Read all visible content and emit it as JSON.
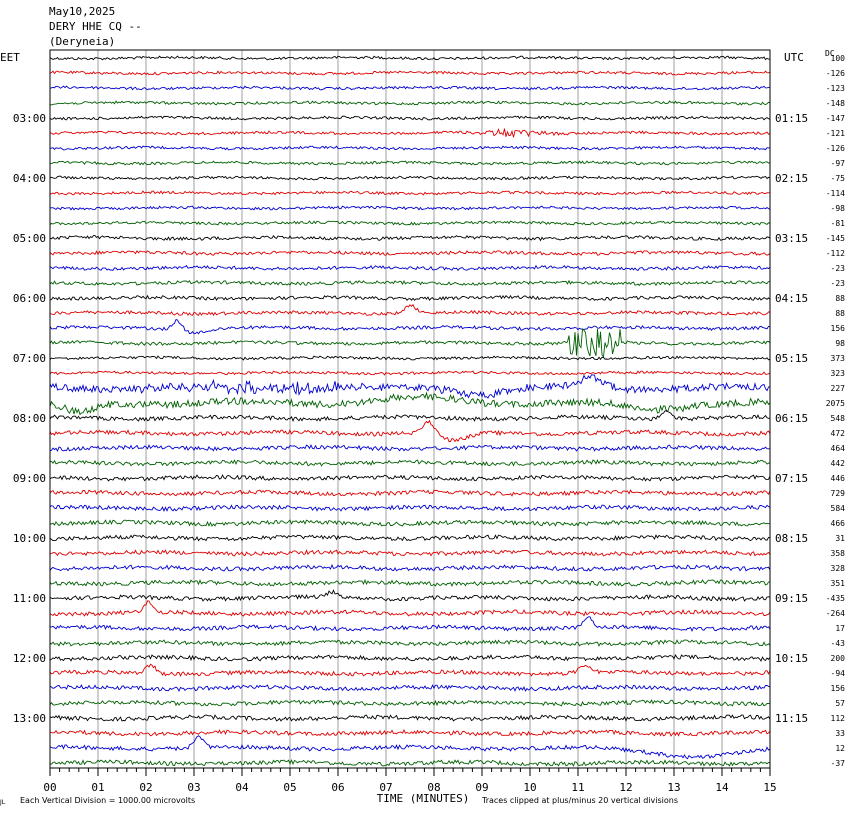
{
  "header": {
    "date": "May10,2025",
    "station": "DERY HHE CQ --",
    "location": "(Deryneia)"
  },
  "chart_data": {
    "type": "line",
    "subtype": "helicorder",
    "left_axis_label": "EET",
    "right_axis_label": "UTC",
    "dc_header": "DC",
    "xlabel": "TIME (MINUTES)",
    "x_ticks": [
      "00",
      "01",
      "02",
      "03",
      "04",
      "05",
      "06",
      "07",
      "08",
      "09",
      "10",
      "11",
      "12",
      "13",
      "14",
      "15"
    ],
    "left_hours": [
      "03:00",
      "04:00",
      "05:00",
      "06:00",
      "07:00",
      "08:00",
      "09:00",
      "10:00",
      "11:00",
      "12:00",
      "13:00"
    ],
    "right_hours": [
      "01:15",
      "02:15",
      "03:15",
      "04:15",
      "05:15",
      "06:15",
      "07:15",
      "08:15",
      "09:15",
      "10:15",
      "11:15"
    ],
    "trace_colors": [
      "#000000",
      "#e00000",
      "#0000d0",
      "#006000"
    ],
    "dc_offsets": [
      "100",
      "-126",
      "-123",
      "-148",
      "-147",
      "-121",
      "-126",
      "-97",
      "-75",
      "-114",
      "-98",
      "-81",
      "-145",
      "-112",
      "-23",
      "-23",
      "88",
      "88",
      "156",
      "98",
      "373",
      "323",
      "227",
      "2075",
      "548",
      "472",
      "464",
      "442",
      "446",
      "729",
      "584",
      "466",
      "31",
      "358",
      "328",
      "351",
      "-435",
      "-264",
      "17",
      "-43",
      "200",
      "-94",
      "156",
      "57",
      "112",
      "33",
      "12",
      "-37"
    ],
    "footer_left": "Each Vertical Division = 1000.00 microvolts",
    "footer_right": "Traces clipped at plus/minus 20 vertical divisions",
    "logo_text": "JL"
  }
}
